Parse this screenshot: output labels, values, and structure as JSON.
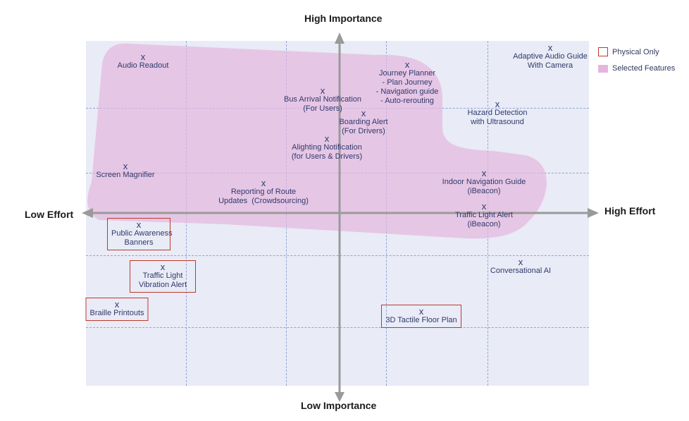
{
  "axes": {
    "top": "High Importance",
    "bottom": "Low Importance",
    "left": "Low Effort",
    "right": "High Effort"
  },
  "legend": {
    "physical_only": "Physical Only",
    "selected_features": "Selected Features"
  },
  "colors": {
    "plot_bg": "#e9ebf6",
    "selected_area": "#e4b6de",
    "physical_border": "#c0392b",
    "axis": "#9a9a9a",
    "grid": "#8fa6d6"
  },
  "marker": "x",
  "points": [
    {
      "id": "audio-readout",
      "label": "Audio Readout"
    },
    {
      "id": "adaptive-audio",
      "label": "Adaptive Audio Guide\nWith Camera"
    },
    {
      "id": "journey-planner",
      "label": "Journey Planner\n- Plan Journey\n- Navigation guide\n- Auto-rerouting"
    },
    {
      "id": "bus-arrival",
      "label": "Bus Arrival Notification\n(For Users)"
    },
    {
      "id": "boarding-alert",
      "label": "Boarding Alert\n(For Drivers)"
    },
    {
      "id": "hazard-detection",
      "label": "Hazard Detection\nwith Ultrasound"
    },
    {
      "id": "alighting",
      "label": "Alighting Notification\n(for Users & Drivers)"
    },
    {
      "id": "screen-magnifier",
      "label": "Screen Magnifier"
    },
    {
      "id": "reporting-route",
      "label": "Reporting of Route\nUpdates  (Crowdsourcing)"
    },
    {
      "id": "indoor-nav",
      "label": "Indoor Navigation Guide\n(iBeacon)"
    },
    {
      "id": "traffic-light-alert",
      "label": "Traffic Light Alert\n(iBeacon)"
    },
    {
      "id": "public-awareness",
      "label": "Public Awareness\nBanners"
    },
    {
      "id": "traffic-vibration",
      "label": "Traffic Light\nVibration Alert"
    },
    {
      "id": "braille",
      "label": "Braille Printouts"
    },
    {
      "id": "conversational-ai",
      "label": "Conversational AI"
    },
    {
      "id": "tactile-floor",
      "label": "3D Tactile Floor Plan"
    }
  ]
}
